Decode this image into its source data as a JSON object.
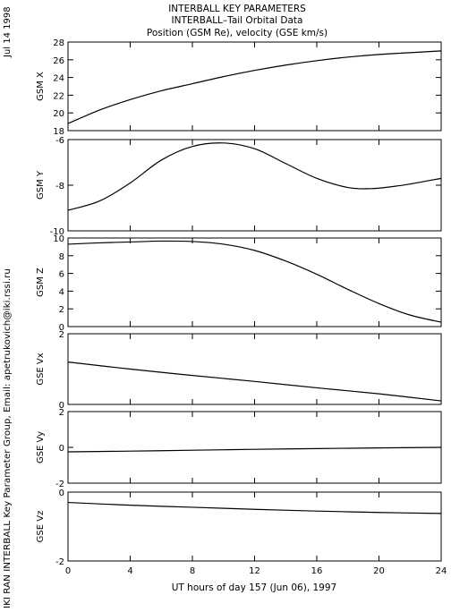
{
  "header": {
    "title_line1": "INTERBALL KEY PARAMETERS",
    "title_line2": "INTERBALL–Tail Orbital Data",
    "title_line3": "Position (GSM Re), velocity (GSE km/s)"
  },
  "side": {
    "date": "Jul 14 1998",
    "credit": "IKI RAN INTERBALL Key Parameter Group, Email: apetrukovich@iki.rssi.ru"
  },
  "colors": {
    "line": "#000000",
    "frame": "#000000",
    "background": "#ffffff"
  },
  "chart_data": {
    "type": "line",
    "xlabel": "UT hours of day 157 (Jun 06), 1997",
    "xlim": [
      0,
      24
    ],
    "xticks": [
      0,
      4,
      8,
      12,
      16,
      20,
      24
    ],
    "grid": false,
    "panels": [
      {
        "ylabel": "GSM X",
        "ylim": [
          18,
          28
        ],
        "yticks": [
          18,
          20,
          22,
          24,
          26,
          28
        ],
        "x": [
          0,
          2,
          4,
          6,
          8,
          10,
          12,
          14,
          16,
          18,
          20,
          22,
          24
        ],
        "y": [
          18.8,
          20.3,
          21.5,
          22.5,
          23.3,
          24.1,
          24.8,
          25.4,
          25.9,
          26.3,
          26.6,
          26.8,
          27.0
        ]
      },
      {
        "ylabel": "GSM Y",
        "ylim": [
          -10,
          -6
        ],
        "yticks": [
          -10,
          -8,
          -6
        ],
        "x": [
          0,
          2,
          4,
          6,
          8,
          10,
          12,
          14,
          16,
          18,
          19.5,
          21,
          22,
          24
        ],
        "y": [
          -9.1,
          -8.7,
          -7.9,
          -6.9,
          -6.3,
          -6.15,
          -6.4,
          -7.05,
          -7.7,
          -8.1,
          -8.15,
          -8.05,
          -7.95,
          -7.7
        ]
      },
      {
        "ylabel": "GSM Z",
        "ylim": [
          0,
          10
        ],
        "yticks": [
          0,
          2,
          4,
          6,
          8,
          10
        ],
        "x": [
          0,
          2,
          4,
          6,
          8,
          10,
          12,
          14,
          16,
          18,
          20,
          22,
          24
        ],
        "y": [
          9.3,
          9.45,
          9.55,
          9.65,
          9.6,
          9.3,
          8.6,
          7.4,
          5.9,
          4.2,
          2.6,
          1.3,
          0.5
        ]
      },
      {
        "ylabel": "GSE Vx",
        "ylim": [
          0,
          2
        ],
        "yticks": [
          0,
          2
        ],
        "x": [
          0,
          4,
          8,
          12,
          16,
          20,
          24
        ],
        "y": [
          1.2,
          1.0,
          0.82,
          0.65,
          0.47,
          0.3,
          0.1
        ]
      },
      {
        "ylabel": "GSE Vy",
        "ylim": [
          -2,
          2
        ],
        "yticks": [
          -2,
          0,
          2
        ],
        "x": [
          0,
          4,
          8,
          12,
          16,
          20,
          24
        ],
        "y": [
          -0.25,
          -0.21,
          -0.16,
          -0.11,
          -0.07,
          -0.03,
          0.0
        ]
      },
      {
        "ylabel": "GSE Vz",
        "ylim": [
          -2,
          0
        ],
        "yticks": [
          -2,
          0
        ],
        "x": [
          0,
          4,
          8,
          12,
          16,
          20,
          24
        ],
        "y": [
          -0.3,
          -0.38,
          -0.44,
          -0.5,
          -0.55,
          -0.59,
          -0.62
        ]
      }
    ]
  }
}
